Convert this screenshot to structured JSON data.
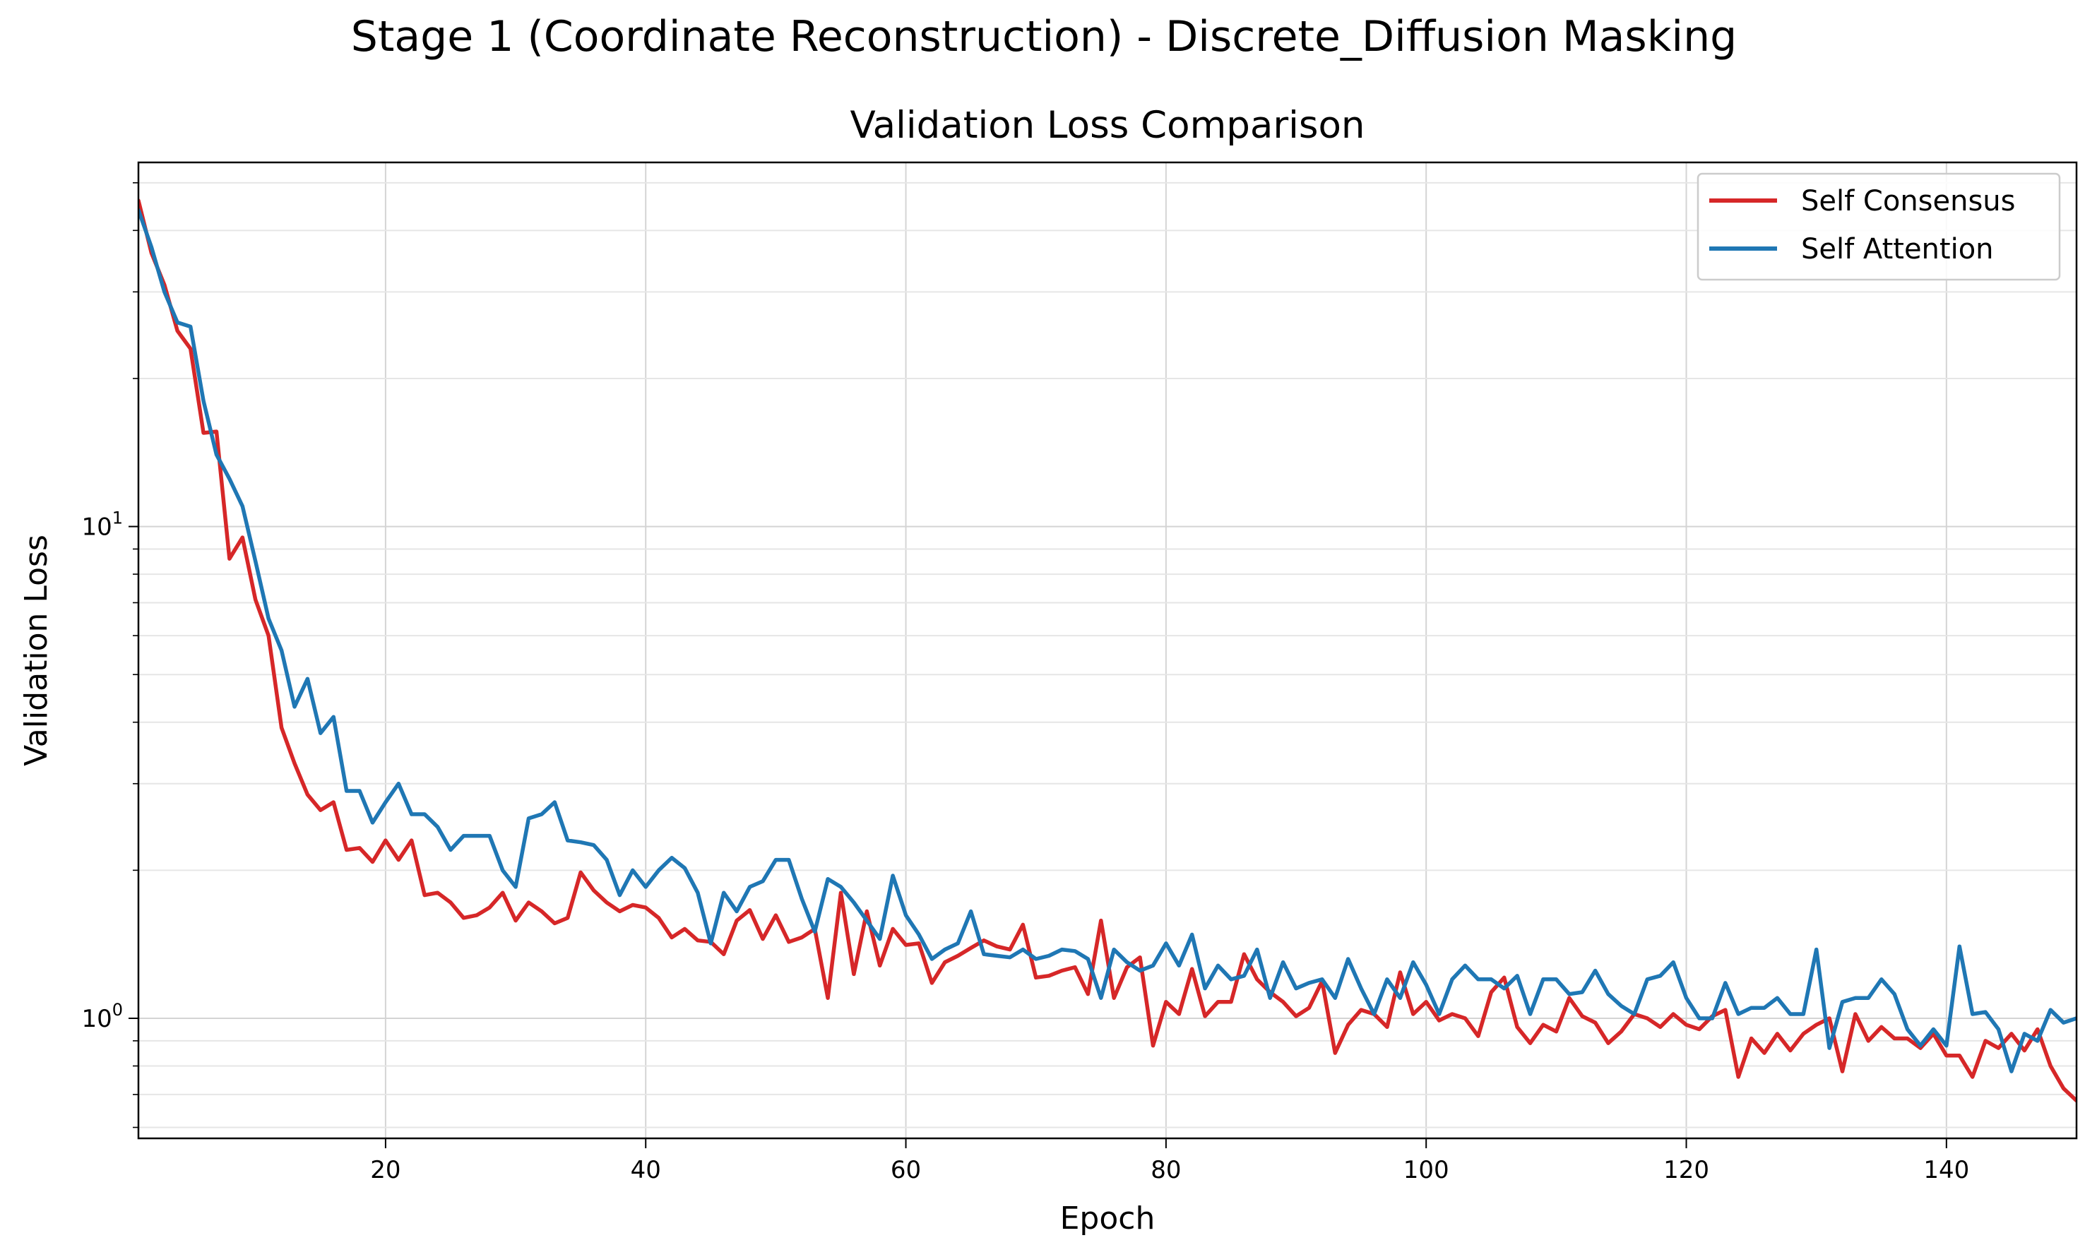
{
  "figure": {
    "suptitle": "Stage 1 (Coordinate Reconstruction) - Discrete_Diffusion Masking"
  },
  "chart_data": {
    "type": "line",
    "title": "Validation Loss Comparison",
    "xlabel": "Epoch",
    "ylabel": "Validation Loss",
    "yscale": "log",
    "xlim": [
      1,
      150
    ],
    "ylim": [
      0.57,
      55
    ],
    "xticks": [
      20,
      40,
      60,
      80,
      100,
      120,
      140
    ],
    "xtick_labels": [
      "20",
      "40",
      "60",
      "80",
      "100",
      "120",
      "140"
    ],
    "ytick_major": [
      {
        "value": 1,
        "base": "10",
        "exp": "0"
      },
      {
        "value": 10,
        "base": "10",
        "exp": "1"
      }
    ],
    "ytick_minor": [
      0.6,
      0.7,
      0.8,
      0.9,
      2,
      3,
      4,
      5,
      6,
      7,
      8,
      9,
      20,
      30,
      40,
      50
    ],
    "grid": true,
    "legend_position": "top-right",
    "series": [
      {
        "name": "Self Consensus",
        "color": "#d62728",
        "values": [
          46,
          36,
          31,
          25,
          23,
          15.5,
          15.6,
          8.6,
          9.5,
          7.1,
          6.0,
          3.9,
          3.3,
          2.85,
          2.65,
          2.75,
          2.2,
          2.22,
          2.08,
          2.3,
          2.1,
          2.3,
          1.78,
          1.8,
          1.72,
          1.6,
          1.62,
          1.68,
          1.8,
          1.58,
          1.72,
          1.65,
          1.56,
          1.6,
          1.98,
          1.82,
          1.72,
          1.65,
          1.7,
          1.68,
          1.6,
          1.46,
          1.52,
          1.44,
          1.43,
          1.35,
          1.58,
          1.66,
          1.45,
          1.62,
          1.43,
          1.46,
          1.52,
          1.1,
          1.8,
          1.23,
          1.65,
          1.28,
          1.52,
          1.41,
          1.42,
          1.18,
          1.3,
          1.34,
          1.39,
          1.44,
          1.4,
          1.38,
          1.55,
          1.21,
          1.22,
          1.25,
          1.27,
          1.12,
          1.58,
          1.1,
          1.27,
          1.33,
          0.88,
          1.08,
          1.02,
          1.26,
          1.01,
          1.08,
          1.08,
          1.35,
          1.2,
          1.13,
          1.08,
          1.01,
          1.05,
          1.19,
          0.85,
          0.97,
          1.04,
          1.02,
          0.96,
          1.24,
          1.02,
          1.08,
          0.99,
          1.02,
          1.0,
          0.92,
          1.13,
          1.21,
          0.96,
          0.89,
          0.97,
          0.94,
          1.1,
          1.01,
          0.98,
          0.89,
          0.94,
          1.02,
          1.0,
          0.96,
          1.02,
          0.97,
          0.95,
          1.01,
          1.04,
          0.76,
          0.91,
          0.85,
          0.93,
          0.86,
          0.93,
          0.97,
          1.0,
          0.78,
          1.02,
          0.9,
          0.96,
          0.91,
          0.91,
          0.87,
          0.93,
          0.84,
          0.84,
          0.76,
          0.9,
          0.87,
          0.93,
          0.86,
          0.95,
          0.8,
          0.72,
          0.68
        ]
      },
      {
        "name": "Self Attention",
        "color": "#1f77b4",
        "values": [
          44,
          37,
          30,
          26,
          25.5,
          18,
          14,
          12.5,
          11,
          8.5,
          6.5,
          5.6,
          4.3,
          4.9,
          3.8,
          4.1,
          2.9,
          2.9,
          2.5,
          2.75,
          3.0,
          2.6,
          2.6,
          2.45,
          2.2,
          2.35,
          2.35,
          2.35,
          2.0,
          1.85,
          2.55,
          2.6,
          2.75,
          2.3,
          2.28,
          2.25,
          2.1,
          1.78,
          2.0,
          1.85,
          2.0,
          2.12,
          2.02,
          1.8,
          1.42,
          1.8,
          1.65,
          1.85,
          1.9,
          2.1,
          2.1,
          1.75,
          1.5,
          1.92,
          1.85,
          1.72,
          1.58,
          1.45,
          1.95,
          1.62,
          1.48,
          1.32,
          1.38,
          1.42,
          1.65,
          1.35,
          1.34,
          1.33,
          1.38,
          1.32,
          1.34,
          1.38,
          1.37,
          1.32,
          1.1,
          1.38,
          1.3,
          1.25,
          1.28,
          1.42,
          1.28,
          1.48,
          1.15,
          1.28,
          1.2,
          1.22,
          1.38,
          1.1,
          1.3,
          1.15,
          1.18,
          1.2,
          1.1,
          1.32,
          1.15,
          1.02,
          1.2,
          1.1,
          1.3,
          1.17,
          1.02,
          1.2,
          1.28,
          1.2,
          1.2,
          1.15,
          1.22,
          1.02,
          1.2,
          1.2,
          1.12,
          1.13,
          1.25,
          1.12,
          1.06,
          1.02,
          1.2,
          1.22,
          1.3,
          1.1,
          1.0,
          1.0,
          1.18,
          1.02,
          1.05,
          1.05,
          1.1,
          1.02,
          1.02,
          1.38,
          0.87,
          1.08,
          1.1,
          1.1,
          1.2,
          1.12,
          0.95,
          0.88,
          0.95,
          0.88,
          1.4,
          1.02,
          1.03,
          0.95,
          0.78,
          0.93,
          0.9,
          1.04,
          0.98,
          1.0
        ]
      }
    ]
  }
}
